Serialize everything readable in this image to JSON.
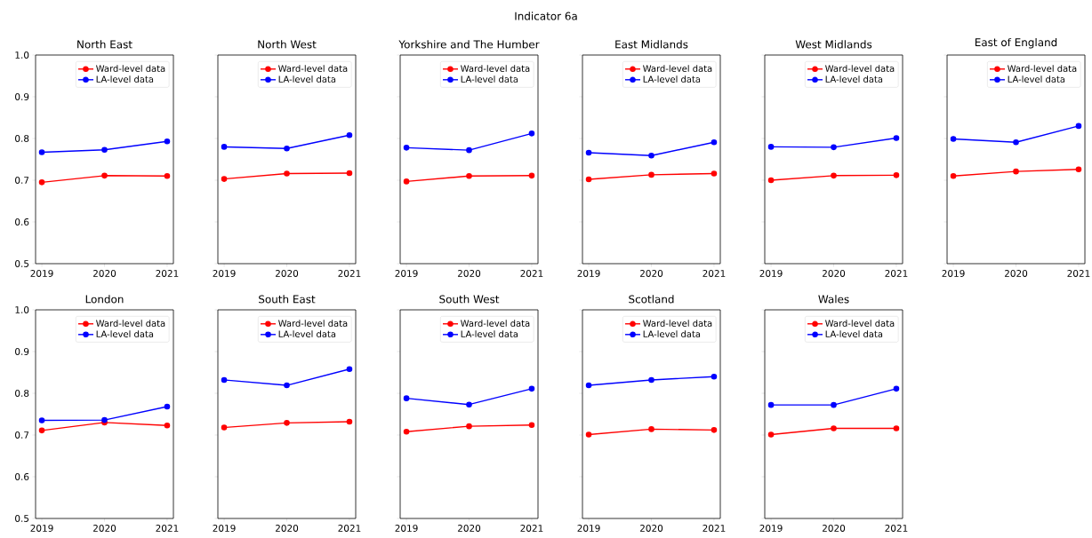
{
  "chart_data": [
    {
      "type": "other",
      "title": "Indicator 6a"
    },
    {
      "type": "line",
      "title": "North East",
      "x": [
        2019,
        2020,
        2021
      ],
      "xlim": [
        2018.9,
        2021.1
      ],
      "xticks": [
        2019,
        2020,
        2021
      ],
      "ylim": [
        0.5,
        1.0
      ],
      "yticks": [
        0.5,
        0.6,
        0.7,
        0.8,
        0.9,
        {
          "value": 1.0,
          "label": "1.0"
        }
      ],
      "legend": "top right",
      "marker": "circle",
      "series": [
        {
          "name": "Ward-level data",
          "color": "#ff0000",
          "values": [
            0.695,
            0.711,
            0.71
          ]
        },
        {
          "name": "LA-level data",
          "color": "#0000ff",
          "values": [
            0.767,
            0.773,
            0.793
          ]
        }
      ]
    },
    {
      "type": "line",
      "title": "North West",
      "x": [
        2019,
        2020,
        2021
      ],
      "xlim": [
        2018.9,
        2021.1
      ],
      "xticks": [
        2019,
        2020,
        2021
      ],
      "ylim": [
        0.5,
        1.0
      ],
      "yticks": [
        0.5,
        0.6,
        0.7,
        0.8,
        0.9,
        1.0
      ],
      "tick_labels": "x",
      "legend": "top right",
      "marker": "circle",
      "series": [
        {
          "name": "Ward-level data",
          "color": "#ff0000",
          "values": [
            0.703,
            0.716,
            0.717
          ]
        },
        {
          "name": "LA-level data",
          "color": "#0000ff",
          "values": [
            0.78,
            0.776,
            0.808
          ]
        }
      ]
    },
    {
      "type": "line",
      "title": "Yorkshire and The Humber",
      "x": [
        2019,
        2020,
        2021
      ],
      "xlim": [
        2018.9,
        2021.1
      ],
      "xticks": [
        2019,
        2020,
        2021
      ],
      "ylim": [
        0.5,
        1.0
      ],
      "yticks": [
        0.5,
        0.6,
        0.7,
        0.8,
        0.9,
        1.0
      ],
      "tick_labels": "x",
      "legend": "top right",
      "marker": "circle",
      "series": [
        {
          "name": "Ward-level data",
          "color": "#ff0000",
          "values": [
            0.697,
            0.71,
            0.711
          ]
        },
        {
          "name": "LA-level data",
          "color": "#0000ff",
          "values": [
            0.778,
            0.772,
            0.812
          ]
        }
      ]
    },
    {
      "type": "line",
      "title": "East Midlands",
      "x": [
        2019,
        2020,
        2021
      ],
      "xlim": [
        2018.9,
        2021.1
      ],
      "xticks": [
        2019,
        2020,
        2021
      ],
      "ylim": [
        0.5,
        1.0
      ],
      "yticks": [
        0.5,
        0.6,
        0.7,
        0.8,
        0.9,
        1.0
      ],
      "tick_labels": "x",
      "legend": "top right",
      "marker": "circle",
      "series": [
        {
          "name": "Ward-level data",
          "color": "#ff0000",
          "values": [
            0.702,
            0.713,
            0.716
          ]
        },
        {
          "name": "LA-level data",
          "color": "#0000ff",
          "values": [
            0.766,
            0.759,
            0.791
          ]
        }
      ]
    },
    {
      "type": "line",
      "title": "West Midlands",
      "x": [
        2019,
        2020,
        2021
      ],
      "xlim": [
        2018.9,
        2021.1
      ],
      "xticks": [
        2019,
        2020,
        2021
      ],
      "ylim": [
        0.5,
        1.0
      ],
      "yticks": [
        0.5,
        0.6,
        0.7,
        0.8,
        0.9,
        1.0
      ],
      "tick_labels": "x",
      "legend": "top right",
      "marker": "circle",
      "series": [
        {
          "name": "Ward-level data",
          "color": "#ff0000",
          "values": [
            0.7,
            0.711,
            0.712
          ]
        },
        {
          "name": "LA-level data",
          "color": "#0000ff",
          "values": [
            0.78,
            0.779,
            0.801
          ]
        }
      ]
    },
    {
      "type": "line",
      "title": "East of England",
      "x": [
        2019,
        2020,
        2021
      ],
      "xlim": [
        2018.9,
        2021.1
      ],
      "xticks": [
        2019,
        2020,
        2021
      ],
      "ylim": [
        0.5,
        1.0
      ],
      "yticks": [
        0.5,
        0.6,
        0.7,
        0.8,
        0.9,
        1.0
      ],
      "tick_labels": "x",
      "legend": "top right",
      "marker": "circle",
      "series": [
        {
          "name": "Ward-level data",
          "color": "#ff0000",
          "values": [
            0.71,
            0.721,
            0.726
          ]
        },
        {
          "name": "LA-level data",
          "color": "#0000ff",
          "values": [
            0.799,
            0.791,
            0.83
          ]
        }
      ]
    },
    {
      "type": "line",
      "title": "London",
      "x": [
        2019,
        2020,
        2021
      ],
      "xlim": [
        2018.9,
        2021.1
      ],
      "xticks": [
        2019,
        2020,
        2021
      ],
      "ylim": [
        0.5,
        1.0
      ],
      "yticks": [
        0.5,
        0.6,
        0.7,
        0.8,
        0.9,
        {
          "value": 1.0,
          "label": "1.0"
        }
      ],
      "legend": "top right",
      "marker": "circle",
      "series": [
        {
          "name": "Ward-level data",
          "color": "#ff0000",
          "values": [
            0.711,
            0.73,
            0.723
          ]
        },
        {
          "name": "LA-level data",
          "color": "#0000ff",
          "values": [
            0.735,
            0.736,
            0.768
          ]
        }
      ]
    },
    {
      "type": "line",
      "title": "South East",
      "x": [
        2019,
        2020,
        2021
      ],
      "xlim": [
        2018.9,
        2021.1
      ],
      "xticks": [
        2019,
        2020,
        2021
      ],
      "ylim": [
        0.5,
        1.0
      ],
      "yticks": [
        0.5,
        0.6,
        0.7,
        0.8,
        0.9,
        1.0
      ],
      "tick_labels": "x",
      "legend": "top right",
      "marker": "circle",
      "series": [
        {
          "name": "Ward-level data",
          "color": "#ff0000",
          "values": [
            0.718,
            0.729,
            0.732
          ]
        },
        {
          "name": "LA-level data",
          "color": "#0000ff",
          "values": [
            0.832,
            0.819,
            0.858
          ]
        }
      ]
    },
    {
      "type": "line",
      "title": "South West",
      "x": [
        2019,
        2020,
        2021
      ],
      "xlim": [
        2018.9,
        2021.1
      ],
      "xticks": [
        2019,
        2020,
        2021
      ],
      "ylim": [
        0.5,
        1.0
      ],
      "yticks": [
        0.5,
        0.6,
        0.7,
        0.8,
        0.9,
        1.0
      ],
      "tick_labels": "x",
      "legend": "top right",
      "marker": "circle",
      "series": [
        {
          "name": "Ward-level data",
          "color": "#ff0000",
          "values": [
            0.708,
            0.721,
            0.724
          ]
        },
        {
          "name": "LA-level data",
          "color": "#0000ff",
          "values": [
            0.788,
            0.773,
            0.811
          ]
        }
      ]
    },
    {
      "type": "line",
      "title": "Scotland",
      "x": [
        2019,
        2020,
        2021
      ],
      "xlim": [
        2018.9,
        2021.1
      ],
      "xticks": [
        2019,
        2020,
        2021
      ],
      "ylim": [
        0.5,
        1.0
      ],
      "yticks": [
        0.5,
        0.6,
        0.7,
        0.8,
        0.9,
        1.0
      ],
      "tick_labels": "x",
      "legend": "top right",
      "marker": "circle",
      "series": [
        {
          "name": "Ward-level data",
          "color": "#ff0000",
          "values": [
            0.701,
            0.714,
            0.712
          ]
        },
        {
          "name": "LA-level data",
          "color": "#0000ff",
          "values": [
            0.819,
            0.832,
            0.84
          ]
        }
      ]
    },
    {
      "type": "line",
      "title": "Wales",
      "x": [
        2019,
        2020,
        2021
      ],
      "xlim": [
        2018.9,
        2021.1
      ],
      "xticks": [
        2019,
        2020,
        2021
      ],
      "ylim": [
        0.5,
        1.0
      ],
      "yticks": [
        0.5,
        0.6,
        0.7,
        0.8,
        0.9,
        1.0
      ],
      "tick_labels": "x",
      "legend": "top right",
      "marker": "circle",
      "series": [
        {
          "name": "Ward-level data",
          "color": "#ff0000",
          "values": [
            0.701,
            0.716,
            0.716
          ]
        },
        {
          "name": "LA-level data",
          "color": "#0000ff",
          "values": [
            0.772,
            0.772,
            0.811
          ]
        }
      ]
    }
  ]
}
